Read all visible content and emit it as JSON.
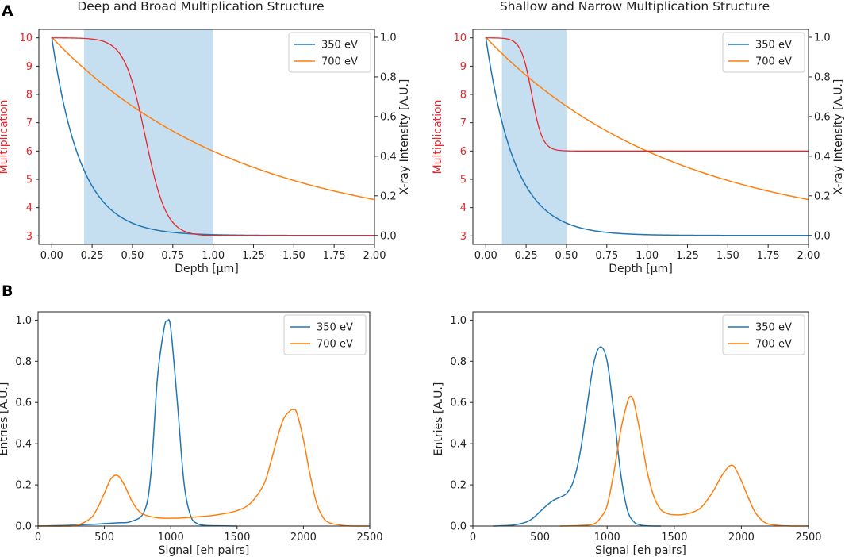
{
  "figure": {
    "panel_labels": [
      "A",
      "B"
    ]
  },
  "colors": {
    "blue": "#1f77b4",
    "orange": "#ff7f0e",
    "red": "#e8272d",
    "shade": "#c6dff0",
    "axis": "#222222"
  },
  "chart_data": [
    {
      "type": "line",
      "title": "Deep and Broad Multiplication Structure",
      "xlabel": "Depth [μm]",
      "ylabel": "Multiplication",
      "y2label": "X-ray Intensity [A.U.]",
      "xlim": [
        -0.08,
        2.0
      ],
      "xticks": [
        "0.00",
        "0.25",
        "0.50",
        "0.75",
        "1.00",
        "1.25",
        "1.50",
        "1.75",
        "2.00"
      ],
      "ylim": [
        2.7,
        10.3
      ],
      "yticks": [
        "3",
        "4",
        "5",
        "6",
        "7",
        "8",
        "9",
        "10"
      ],
      "y2lim": [
        -0.045,
        1.04
      ],
      "y2ticks": [
        "0.0",
        "0.2",
        "0.4",
        "0.6",
        "0.8",
        "1.0"
      ],
      "shaded_region": [
        0.2,
        1.0
      ],
      "multiplication": {
        "high": 10,
        "low": 3,
        "center": 0.58,
        "width": 0.065
      },
      "legend": [
        "350 eV",
        "700 eV"
      ],
      "series": [
        {
          "name": "350 eV",
          "attenuation_length": 0.18
        },
        {
          "name": "700 eV",
          "attenuation_length": 1.17
        }
      ]
    },
    {
      "type": "line",
      "title": "Shallow and Narrow Multiplication Structure",
      "xlabel": "Depth [μm]",
      "ylabel": "Multiplication",
      "y2label": "X-ray Intensity [A.U.]",
      "xlim": [
        -0.08,
        2.0
      ],
      "xticks": [
        "0.00",
        "0.25",
        "0.50",
        "0.75",
        "1.00",
        "1.25",
        "1.50",
        "1.75",
        "2.00"
      ],
      "ylim": [
        2.7,
        10.3
      ],
      "yticks": [
        "3",
        "4",
        "5",
        "6",
        "7",
        "8",
        "9",
        "10"
      ],
      "y2lim": [
        -0.045,
        1.04
      ],
      "y2ticks": [
        "0.0",
        "0.2",
        "0.4",
        "0.6",
        "0.8",
        "1.0"
      ],
      "shaded_region": [
        0.1,
        0.5
      ],
      "multiplication": {
        "high": 10,
        "low": 6,
        "center": 0.285,
        "width": 0.033
      },
      "legend": [
        "350 eV",
        "700 eV"
      ],
      "series": [
        {
          "name": "350 eV",
          "attenuation_length": 0.18
        },
        {
          "name": "700 eV",
          "attenuation_length": 1.17
        }
      ]
    },
    {
      "type": "line",
      "title": "",
      "xlabel": "Signal [eh pairs]",
      "ylabel": "Entries [A.U.]",
      "xlim": [
        0,
        2500
      ],
      "xticks": [
        "0",
        "500",
        "1000",
        "1500",
        "2000",
        "2500"
      ],
      "ylim": [
        0,
        1.04
      ],
      "yticks": [
        "0.0",
        "0.2",
        "0.4",
        "0.6",
        "0.8",
        "1.0"
      ],
      "legend": [
        "350 eV",
        "700 eV"
      ],
      "series": [
        {
          "name": "350 eV",
          "x": [
            0,
            200,
            400,
            500,
            600,
            700,
            800,
            850,
            900,
            950,
            975,
            1000,
            1050,
            1100,
            1150,
            1200,
            1250,
            1300,
            1400,
            1500
          ],
          "y": [
            0,
            0.003,
            0.008,
            0.012,
            0.016,
            0.022,
            0.07,
            0.25,
            0.72,
            0.96,
            0.995,
            0.96,
            0.6,
            0.21,
            0.05,
            0.012,
            0.004,
            0.002,
            0.001,
            0
          ]
        },
        {
          "name": "700 eV",
          "x": [
            0,
            200,
            300,
            400,
            450,
            500,
            550,
            600,
            650,
            700,
            750,
            800,
            900,
            1000,
            1100,
            1200,
            1300,
            1400,
            1500,
            1600,
            1700,
            1750,
            1800,
            1850,
            1900,
            1925,
            1950,
            2000,
            2050,
            2100,
            2150,
            2200,
            2300,
            2400,
            2500
          ],
          "y": [
            0,
            0,
            0.005,
            0.04,
            0.09,
            0.16,
            0.23,
            0.245,
            0.2,
            0.13,
            0.08,
            0.055,
            0.04,
            0.038,
            0.04,
            0.045,
            0.05,
            0.06,
            0.075,
            0.11,
            0.2,
            0.3,
            0.42,
            0.52,
            0.56,
            0.565,
            0.55,
            0.42,
            0.25,
            0.11,
            0.04,
            0.015,
            0.003,
            0,
            0
          ]
        }
      ]
    },
    {
      "type": "line",
      "title": "",
      "xlabel": "Signal [eh pairs]",
      "ylabel": "Entries [A.U.]",
      "xlim": [
        0,
        2500
      ],
      "xticks": [
        "0",
        "500",
        "1000",
        "1500",
        "2000",
        "2500"
      ],
      "ylim": [
        0,
        1.04
      ],
      "yticks": [
        "0.0",
        "0.2",
        "0.4",
        "0.6",
        "0.8",
        "1.0"
      ],
      "legend": [
        "350 eV",
        "700 eV"
      ],
      "series": [
        {
          "name": "350 eV",
          "x": [
            150,
            300,
            400,
            450,
            500,
            550,
            600,
            650,
            700,
            750,
            800,
            850,
            900,
            950,
            1000,
            1050,
            1100,
            1150,
            1200,
            1250,
            1300,
            1400
          ],
          "y": [
            0,
            0.005,
            0.02,
            0.04,
            0.07,
            0.1,
            0.125,
            0.14,
            0.16,
            0.22,
            0.36,
            0.58,
            0.79,
            0.87,
            0.8,
            0.55,
            0.26,
            0.08,
            0.02,
            0.005,
            0.001,
            0
          ]
        },
        {
          "name": "700 eV",
          "x": [
            650,
            800,
            900,
            950,
            1000,
            1050,
            1100,
            1150,
            1175,
            1200,
            1250,
            1300,
            1350,
            1400,
            1450,
            1500,
            1550,
            1600,
            1650,
            1700,
            1750,
            1800,
            1850,
            1900,
            1925,
            1950,
            2000,
            2050,
            2100,
            2150,
            2200,
            2300,
            2400,
            2500
          ],
          "y": [
            0,
            0.003,
            0.01,
            0.04,
            0.1,
            0.26,
            0.46,
            0.6,
            0.63,
            0.6,
            0.44,
            0.26,
            0.14,
            0.08,
            0.06,
            0.055,
            0.055,
            0.06,
            0.07,
            0.09,
            0.13,
            0.18,
            0.24,
            0.285,
            0.295,
            0.285,
            0.22,
            0.14,
            0.07,
            0.03,
            0.01,
            0.002,
            0,
            0
          ]
        }
      ]
    }
  ]
}
